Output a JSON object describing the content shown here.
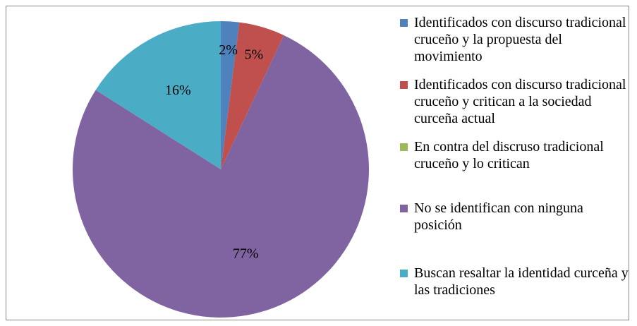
{
  "chart_data": {
    "type": "pie",
    "categories": [
      "Identificados con discurso tradicional cruceño y la propuesta del movimiento",
      "Identificados con discurso tradicional cruceño y critican a la sociedad curceña actual",
      "En contra del discruso tradicional cruceño y lo critican",
      "No se identifican con ninguna posición",
      "Buscan resaltar la identidad curceña y las tradiciones"
    ],
    "values": [
      2,
      5,
      0,
      77,
      16
    ],
    "value_labels": [
      "2%",
      "5%",
      null,
      "77%",
      "16%"
    ],
    "colors": [
      "#4f81bd",
      "#c0504d",
      "#9bbb59",
      "#8064a2",
      "#4bacc6"
    ],
    "legend": "right"
  }
}
